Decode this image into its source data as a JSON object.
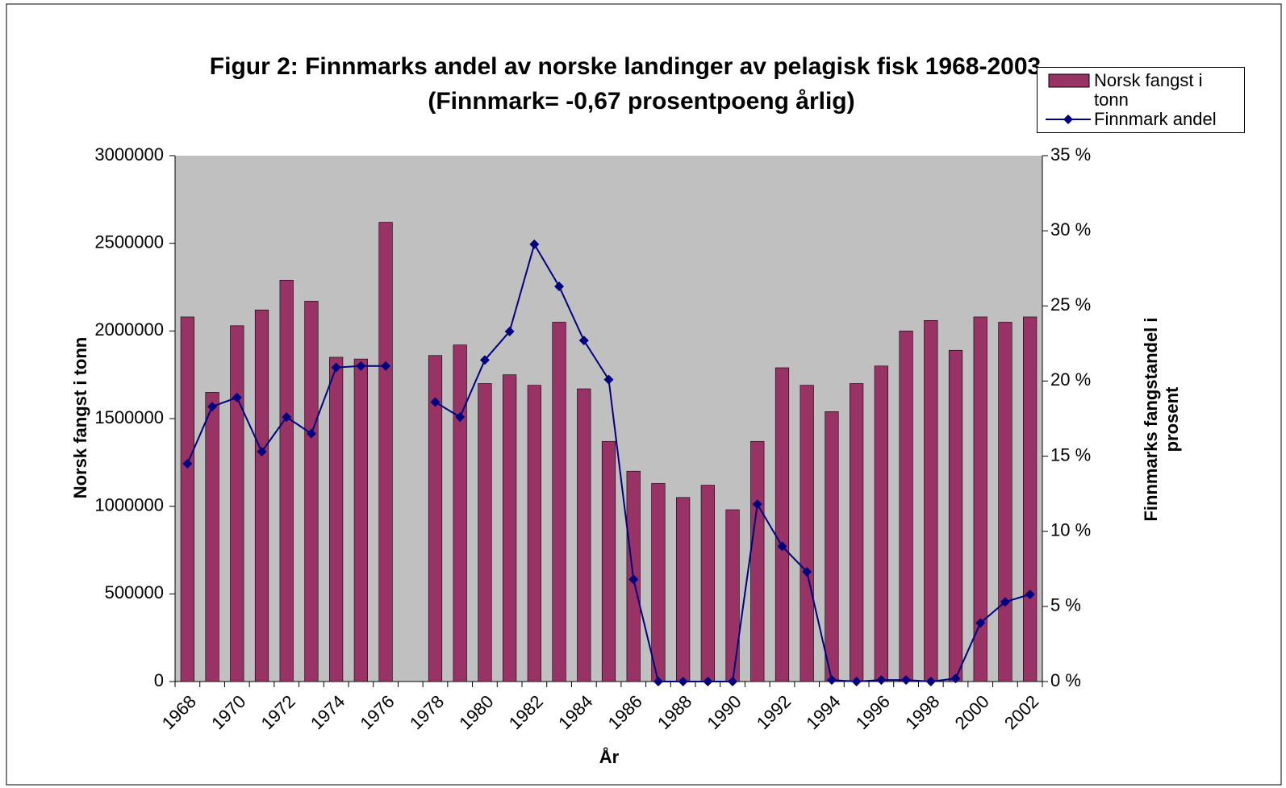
{
  "chart_data": {
    "type": "bar",
    "title": "Figur 2: Finnmarks andel av norske landinger av pelagisk fisk 1968-2003",
    "subtitle": "(Finnmark= -0,67 prosentpoeng årlig)",
    "xlabel": "År",
    "ylabel": "Norsk fangst i tonn",
    "y2label": "Finnmarks fangstandel i prosent",
    "categories": [
      "1968",
      null,
      "1970",
      null,
      "1972",
      null,
      "1974",
      null,
      "1976",
      null,
      "1978",
      null,
      "1980",
      null,
      "1982",
      null,
      "1984",
      null,
      "1986",
      null,
      "1988",
      null,
      "1990",
      null,
      "1992",
      null,
      "1994",
      null,
      "1996",
      null,
      "1998",
      null,
      "2000",
      null,
      "2002"
    ],
    "series": [
      {
        "name": "Norsk fangst i tonn",
        "type": "bar",
        "color": "#993366",
        "values": [
          2080000,
          1650000,
          2030000,
          2120000,
          2290000,
          2170000,
          1850000,
          1840000,
          2620000,
          null,
          1860000,
          1920000,
          1700000,
          1750000,
          1690000,
          2050000,
          1670000,
          1370000,
          1200000,
          1130000,
          1050000,
          1120000,
          980000,
          1370000,
          1790000,
          1690000,
          1540000,
          1700000,
          1800000,
          2000000,
          2060000,
          1890000,
          2080000,
          2050000,
          2080000
        ]
      },
      {
        "name": "Finnmark andel",
        "type": "line",
        "axis": "y2",
        "color": "#000080",
        "values": [
          14.5,
          18.3,
          18.9,
          15.3,
          17.6,
          16.5,
          20.9,
          21.0,
          21.0,
          null,
          18.6,
          17.6,
          21.4,
          23.3,
          29.1,
          26.3,
          22.7,
          20.1,
          6.8,
          0,
          0,
          0,
          0,
          11.8,
          9.0,
          7.3,
          0.1,
          0,
          0.1,
          0.1,
          0,
          0.2,
          3.9,
          5.3,
          5.8
        ]
      }
    ],
    "ylim": [
      0,
      3000000
    ],
    "yticks": [
      0,
      500000,
      1000000,
      1500000,
      2000000,
      2500000,
      3000000
    ],
    "y2lim": [
      0,
      35
    ],
    "y2ticks": [
      {
        "value": 0,
        "label": "0 %"
      },
      {
        "value": 5,
        "label": "5 %"
      },
      {
        "value": 10,
        "label": "10 %"
      },
      {
        "value": 15,
        "label": "15 %"
      },
      {
        "value": 20,
        "label": "20 %"
      },
      {
        "value": 25,
        "label": "25 %"
      },
      {
        "value": 30,
        "label": "30 %"
      },
      {
        "value": 35,
        "label": "35 %"
      }
    ],
    "grid": false,
    "legend": "upper right",
    "plot_background": "#c0c0c0"
  }
}
